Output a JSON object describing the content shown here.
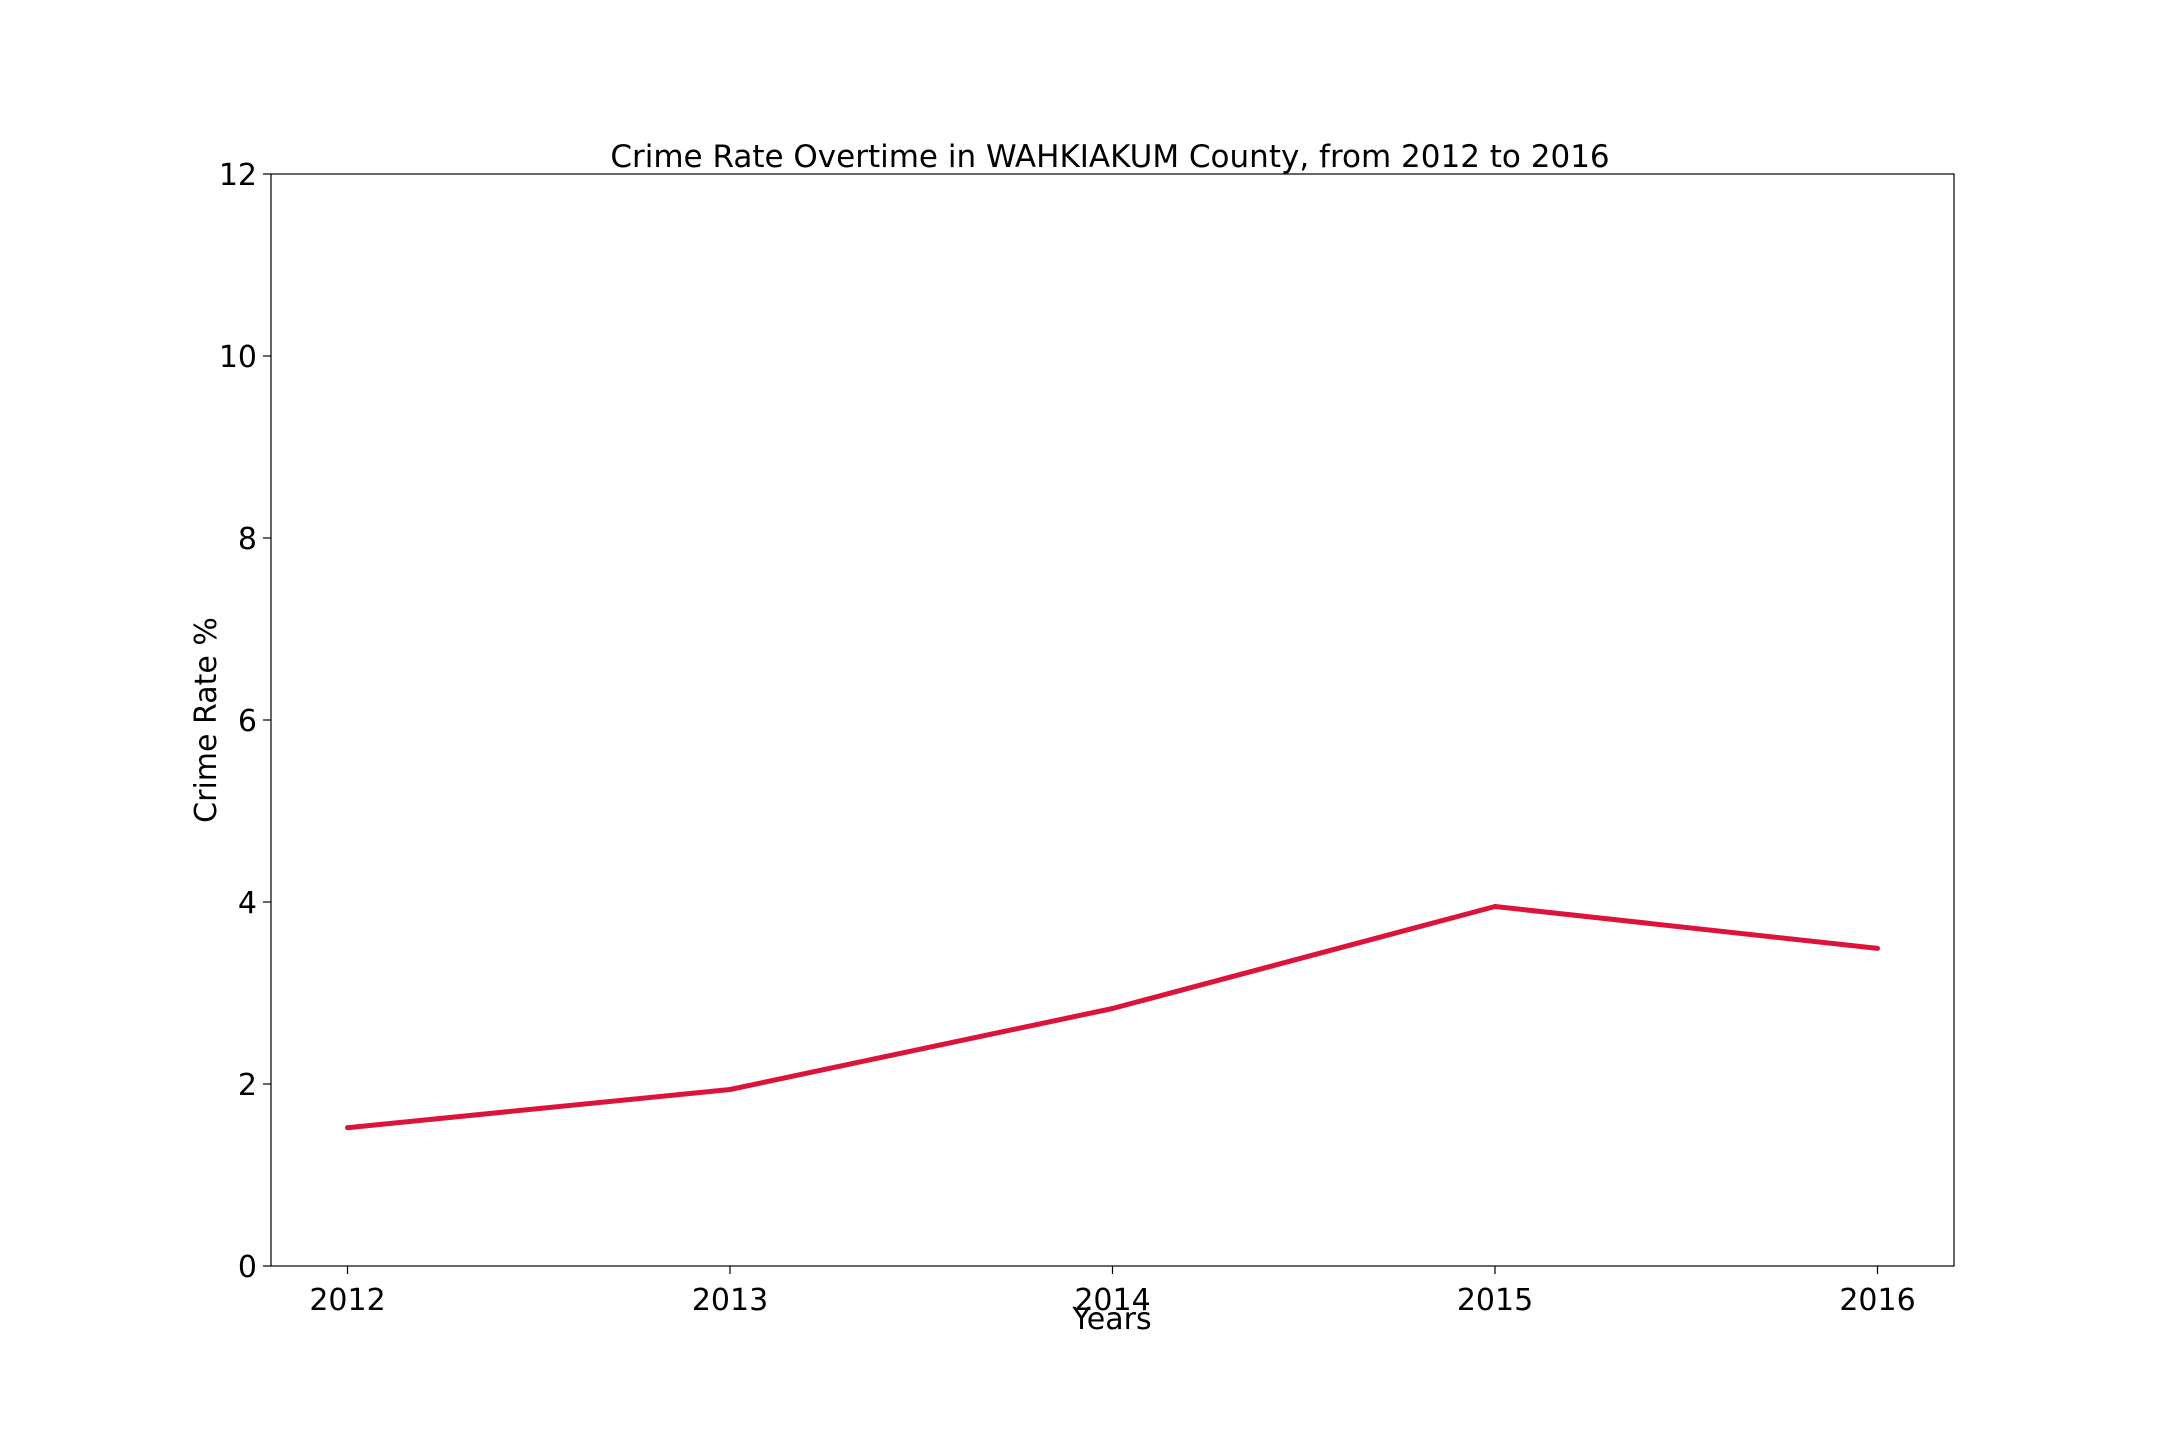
{
  "chart_data": {
    "type": "line",
    "title": "Crime Rate Overtime in WAHKIAKUM County, from 2012 to 2016",
    "xlabel": "Years",
    "ylabel": "Crime Rate %",
    "categories": [
      "2012",
      "2013",
      "2014",
      "2015",
      "2016"
    ],
    "x": [
      2012,
      2013,
      2014,
      2015,
      2016
    ],
    "series": [
      {
        "values": [
          1.52,
          1.94,
          2.83,
          3.95,
          3.49
        ],
        "color": "#dc143c"
      }
    ],
    "yticks": [
      "0",
      "2",
      "4",
      "6",
      "8",
      "10",
      "12"
    ],
    "ylim": [
      0,
      12
    ],
    "xlim": [
      2011.8,
      2016.2
    ],
    "grid": false,
    "legend": "none"
  }
}
